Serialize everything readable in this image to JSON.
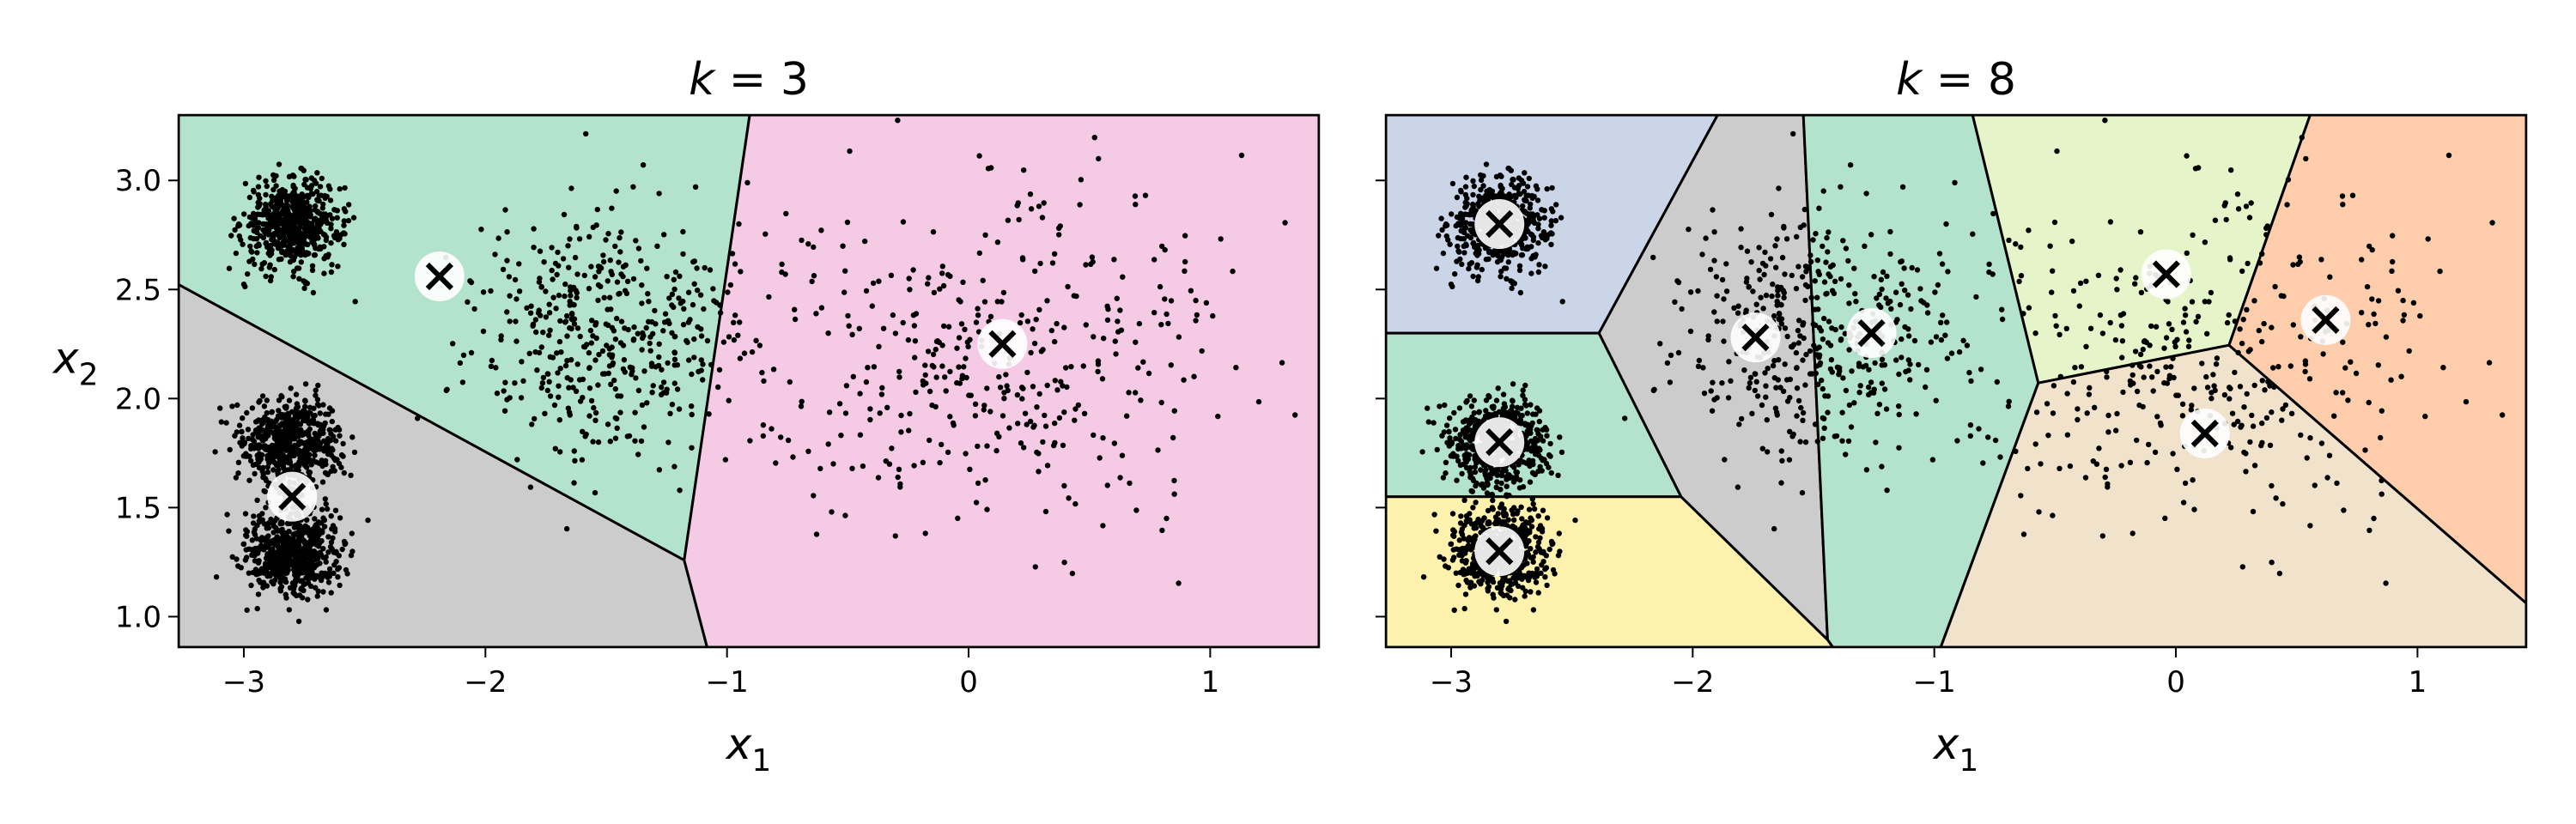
{
  "chart_data": [
    {
      "type": "scatter",
      "subtype": "voronoi-decision-boundaries",
      "title": {
        "var": "k",
        "eq": " = ",
        "val": "3"
      },
      "xlabel": {
        "base": "x",
        "sub": "1"
      },
      "ylabel": {
        "base": "x",
        "sub": "2"
      },
      "xlim": [
        -3.27,
        1.45
      ],
      "ylim": [
        0.86,
        3.3
      ],
      "xticks": [
        -3,
        -2,
        -1,
        0,
        1
      ],
      "xtick_labels": [
        "−3",
        "−2",
        "−1",
        "0",
        "1"
      ],
      "yticks": [
        1.0,
        1.5,
        2.0,
        2.5,
        3.0
      ],
      "ytick_labels": [
        "1.0",
        "1.5",
        "2.0",
        "2.5",
        "3.0"
      ],
      "show_ytick_labels": true,
      "centroids": [
        {
          "x": -2.8,
          "y": 1.55,
          "color": "#cccccc"
        },
        {
          "x": -2.19,
          "y": 2.56,
          "color": "#b3e2cd"
        },
        {
          "x": 0.14,
          "y": 2.25,
          "color": "#f4cae4"
        }
      ],
      "clusters": [
        {
          "x": -2.8,
          "y": 2.8,
          "sx": 0.1,
          "sy": 0.1,
          "n": 600
        },
        {
          "x": -2.8,
          "y": 1.8,
          "sx": 0.1,
          "sy": 0.1,
          "n": 600
        },
        {
          "x": -2.8,
          "y": 1.3,
          "sx": 0.1,
          "sy": 0.1,
          "n": 600
        },
        {
          "x": -1.5,
          "y": 2.3,
          "sx": 0.28,
          "sy": 0.28,
          "n": 450
        },
        {
          "x": 0.1,
          "y": 2.2,
          "sx": 0.5,
          "sy": 0.4,
          "n": 400
        }
      ],
      "grid": false,
      "legend": "none"
    },
    {
      "type": "scatter",
      "subtype": "voronoi-decision-boundaries",
      "title": {
        "var": "k",
        "eq": " = ",
        "val": "8"
      },
      "xlabel": {
        "base": "x",
        "sub": "1"
      },
      "ylabel": {
        "base": "",
        "sub": ""
      },
      "xlim": [
        -3.27,
        1.45
      ],
      "ylim": [
        0.86,
        3.3
      ],
      "xticks": [
        -3,
        -2,
        -1,
        0,
        1
      ],
      "xtick_labels": [
        "−3",
        "−2",
        "−1",
        "0",
        "1"
      ],
      "yticks": [
        1.0,
        1.5,
        2.0,
        2.5,
        3.0
      ],
      "ytick_labels": [
        "",
        "",
        "",
        "",
        ""
      ],
      "show_ytick_labels": false,
      "centroids": [
        {
          "x": -2.8,
          "y": 2.8,
          "color": "#cbd5e8"
        },
        {
          "x": -2.8,
          "y": 1.8,
          "color": "#b3e2cd"
        },
        {
          "x": -2.8,
          "y": 1.3,
          "color": "#fff2ae"
        },
        {
          "x": -1.74,
          "y": 2.28,
          "color": "#cccccc"
        },
        {
          "x": -1.26,
          "y": 2.3,
          "color": "#b3e2cd"
        },
        {
          "x": -0.04,
          "y": 2.57,
          "color": "#e6f5c9"
        },
        {
          "x": 0.62,
          "y": 2.36,
          "color": "#fdcdac"
        },
        {
          "x": 0.12,
          "y": 1.84,
          "color": "#f1e2cc"
        }
      ],
      "clusters": [
        {
          "x": -2.8,
          "y": 2.8,
          "sx": 0.1,
          "sy": 0.1,
          "n": 600
        },
        {
          "x": -2.8,
          "y": 1.8,
          "sx": 0.1,
          "sy": 0.1,
          "n": 600
        },
        {
          "x": -2.8,
          "y": 1.3,
          "sx": 0.1,
          "sy": 0.1,
          "n": 600
        },
        {
          "x": -1.5,
          "y": 2.3,
          "sx": 0.28,
          "sy": 0.28,
          "n": 450
        },
        {
          "x": 0.1,
          "y": 2.2,
          "sx": 0.5,
          "sy": 0.4,
          "n": 400
        }
      ],
      "grid": false,
      "legend": "none"
    }
  ]
}
